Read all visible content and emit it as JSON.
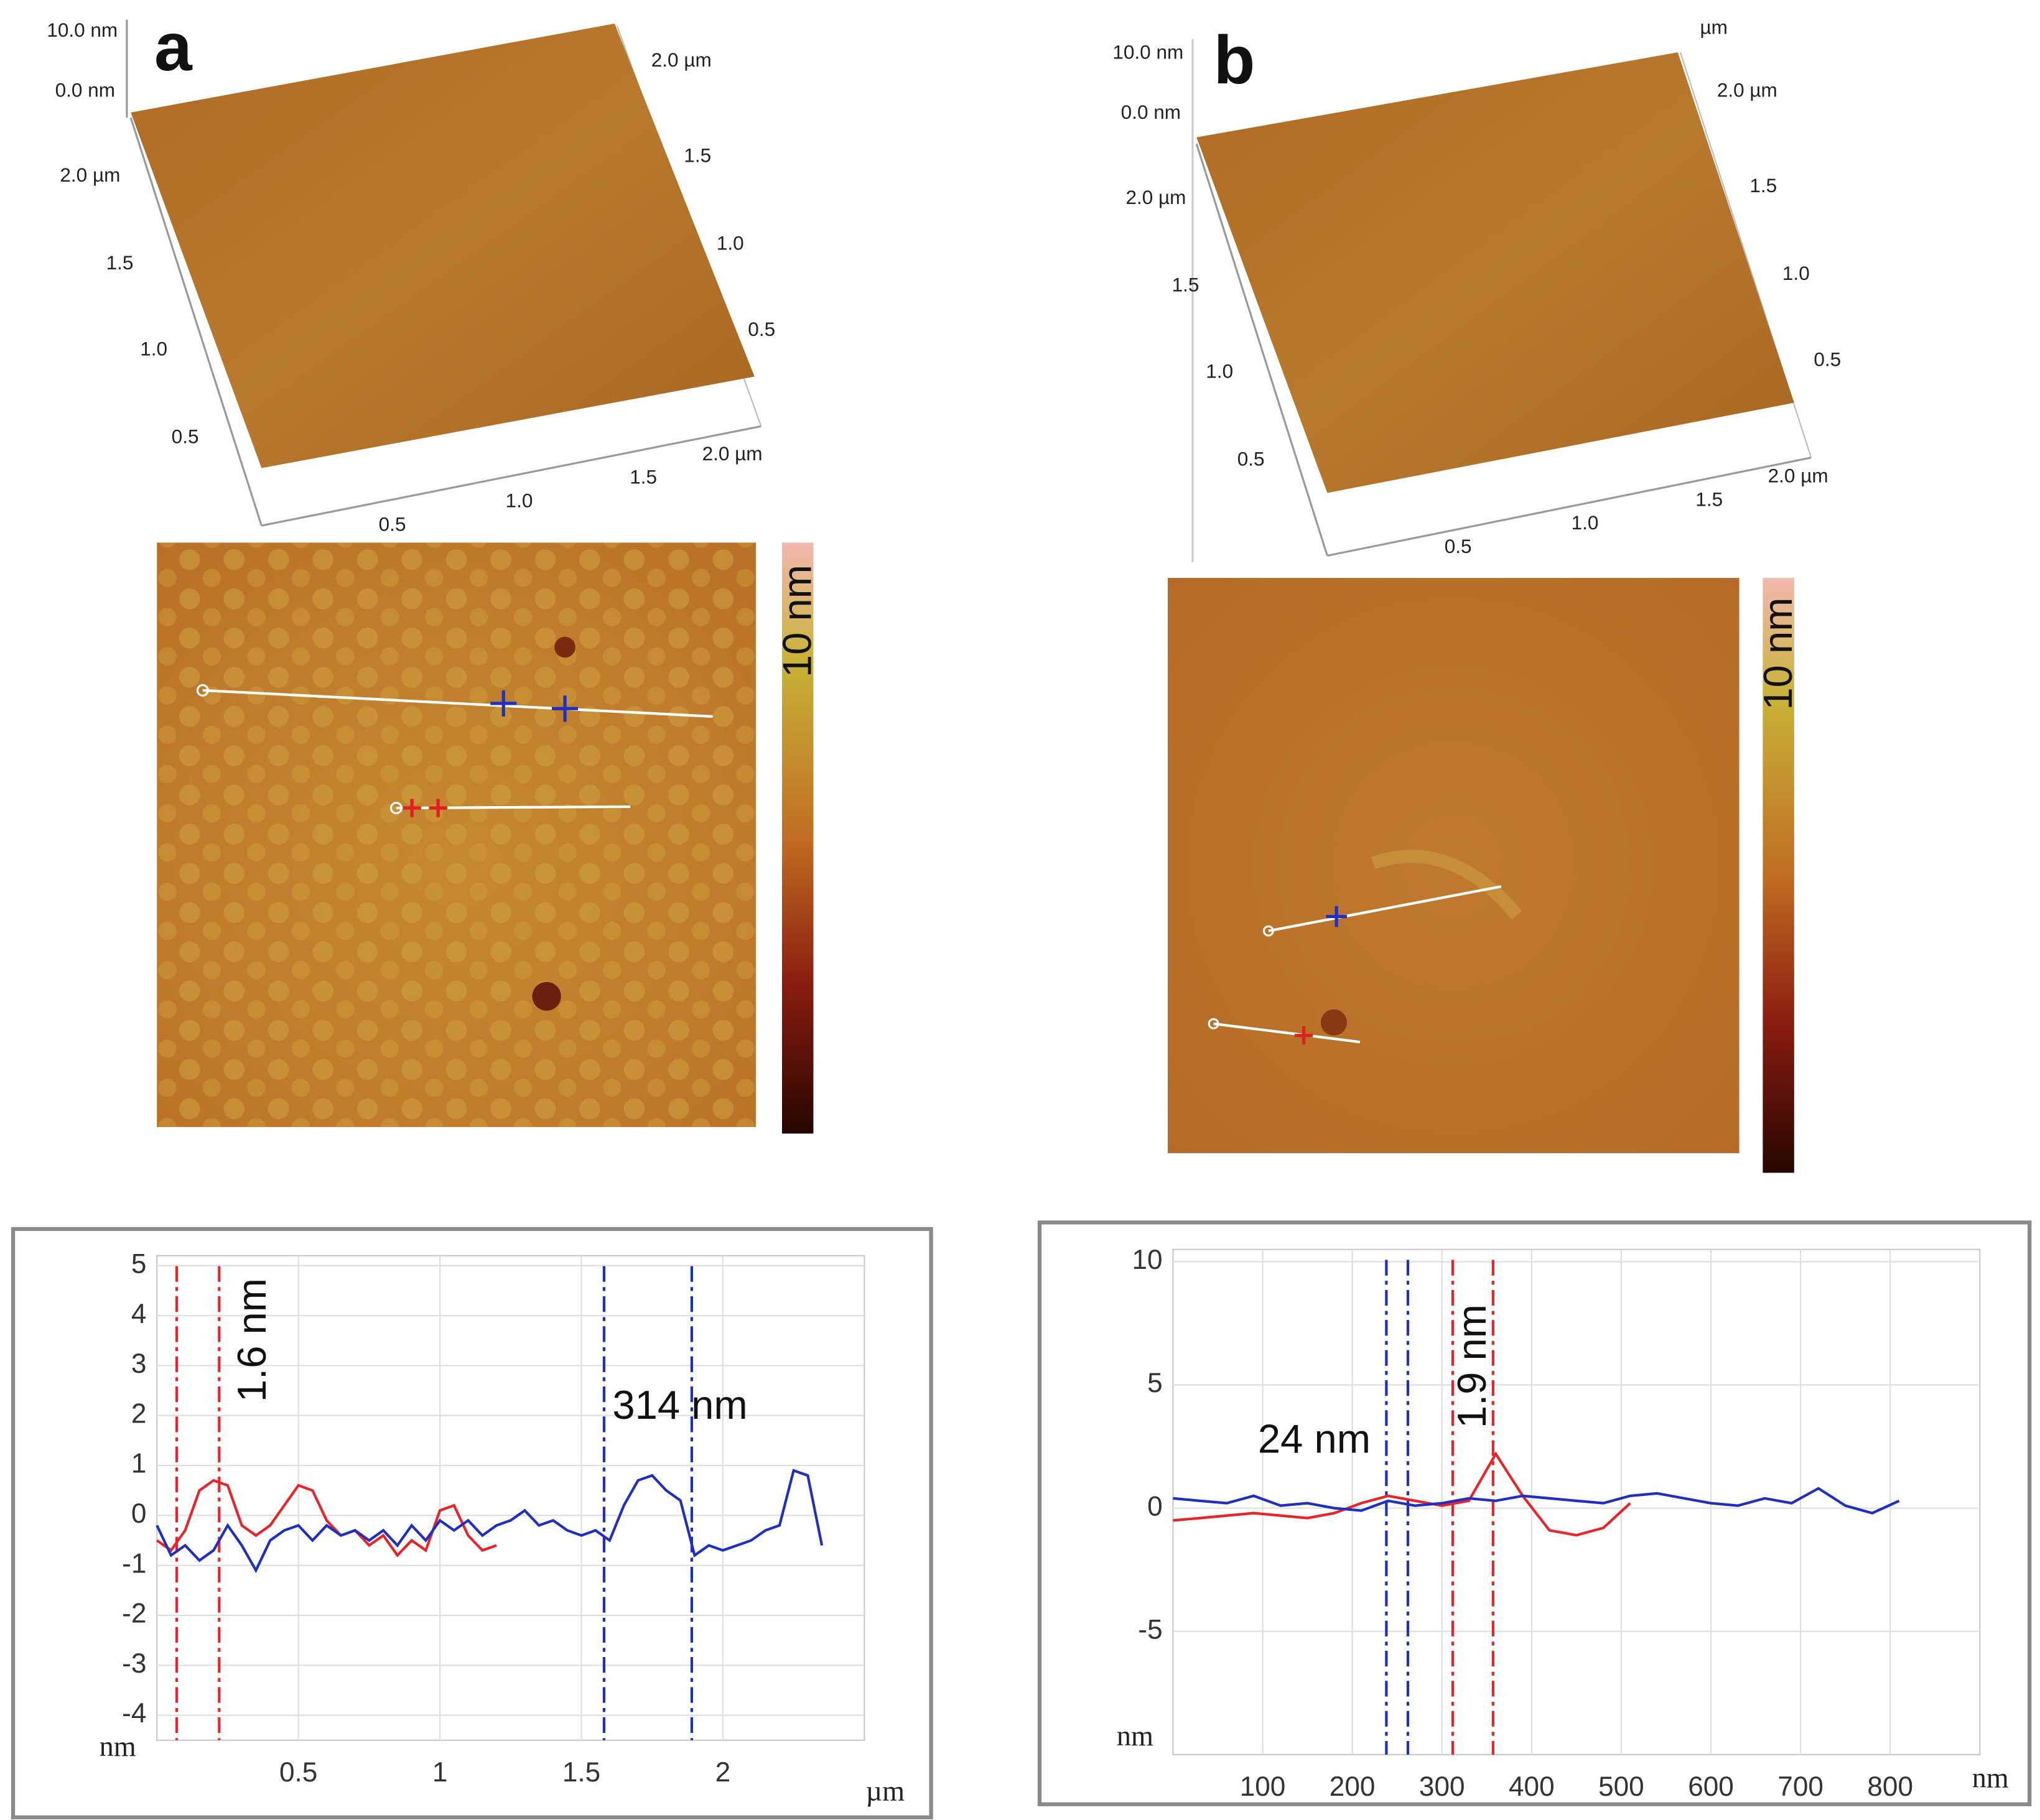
{
  "panels": [
    {
      "label": "a",
      "z_labels": [
        "10.0 nm",
        "0.0 nm"
      ],
      "left_axis": [
        "2.0 µm",
        "1.5",
        "1.0",
        "0.5"
      ],
      "right_axis": [
        "2.0 µm",
        "1.5",
        "1.0",
        "0.5"
      ],
      "bottom_axis": [
        "0.5",
        "1.0",
        "1.5",
        "2.0 µm"
      ],
      "colorbar_label": "10 nm"
    },
    {
      "label": "b",
      "unit_label": "µm",
      "z_labels": [
        "10.0 nm",
        "0.0 nm"
      ],
      "left_axis": [
        "2.0 µm",
        "1.5",
        "1.0",
        "0.5"
      ],
      "right_axis": [
        "2.0 µm",
        "1.5",
        "1.0",
        "0.5"
      ],
      "bottom_axis": [
        "0.5",
        "1.0",
        "1.5",
        "2.0 µm"
      ],
      "colorbar_label": "10 nm"
    }
  ],
  "chart_data": [
    {
      "type": "line",
      "x_label": "µm",
      "y_label": "nm",
      "x": [
        0,
        0.05,
        0.1,
        0.15,
        0.2,
        0.25,
        0.3,
        0.35,
        0.4,
        0.45,
        0.5,
        0.55,
        0.6,
        0.65,
        0.7,
        0.75,
        0.8,
        0.85,
        0.9,
        0.95,
        1.0,
        1.05,
        1.1,
        1.15,
        1.2,
        1.25,
        1.3,
        1.35,
        1.4,
        1.45,
        1.5,
        1.55,
        1.6,
        1.65,
        1.7,
        1.75,
        1.8,
        1.85,
        1.9,
        1.95,
        2.0,
        2.05,
        2.1,
        2.15,
        2.2,
        2.25,
        2.3,
        2.35
      ],
      "series": [
        {
          "color": "#e8232a",
          "values": [
            -0.5,
            -0.7,
            -0.3,
            0.5,
            0.7,
            0.6,
            -0.2,
            -0.4,
            -0.2,
            0.2,
            0.6,
            0.5,
            -0.1,
            -0.4,
            -0.3,
            -0.6,
            -0.4,
            -0.8,
            -0.5,
            -0.7,
            0.1,
            0.2,
            -0.4,
            -0.7,
            -0.6,
            null,
            null,
            null,
            null,
            null,
            null,
            null,
            null,
            null,
            null,
            null,
            null,
            null,
            null,
            null,
            null,
            null,
            null,
            null,
            null,
            null,
            null,
            null
          ]
        },
        {
          "color": "#1f2fbf",
          "values": [
            -0.2,
            -0.8,
            -0.6,
            -0.9,
            -0.7,
            -0.2,
            -0.6,
            -1.1,
            -0.5,
            -0.3,
            -0.2,
            -0.5,
            -0.2,
            -0.4,
            -0.3,
            -0.5,
            -0.3,
            -0.6,
            -0.2,
            -0.5,
            -0.1,
            -0.3,
            -0.1,
            -0.4,
            -0.2,
            -0.1,
            0.1,
            -0.2,
            -0.1,
            -0.3,
            -0.4,
            -0.3,
            -0.5,
            0.2,
            0.7,
            0.8,
            0.5,
            0.3,
            -0.8,
            -0.6,
            -0.7,
            -0.6,
            -0.5,
            -0.3,
            -0.2,
            0.9,
            0.8,
            -0.6
          ]
        }
      ],
      "reference_lines": [
        {
          "x": 0.07,
          "color": "#e8232a"
        },
        {
          "x": 0.22,
          "color": "#e8232a"
        },
        {
          "x": 1.58,
          "color": "#1f2fbf"
        },
        {
          "x": 1.89,
          "color": "#1f2fbf"
        }
      ],
      "annotations": [
        "1.6 nm",
        "314 nm"
      ],
      "xlim": [
        0,
        2.5
      ],
      "ylim": [
        -4.5,
        5.2
      ],
      "xticks": [
        0.5,
        1,
        1.5,
        2
      ],
      "yticks": [
        -4,
        -3,
        -2,
        -1,
        0,
        1,
        2,
        3,
        4,
        5
      ],
      "grid": true
    },
    {
      "type": "line",
      "x_label": "nm",
      "y_label": "nm",
      "x": [
        0,
        30,
        60,
        90,
        120,
        150,
        180,
        210,
        240,
        270,
        300,
        330,
        360,
        390,
        420,
        450,
        480,
        510,
        540,
        570,
        600,
        630,
        660,
        690,
        720,
        750,
        780,
        810
      ],
      "series": [
        {
          "color": "#e8232a",
          "values": [
            -0.5,
            -0.4,
            -0.3,
            -0.2,
            -0.3,
            -0.4,
            -0.2,
            0.2,
            0.5,
            0.3,
            0.1,
            0.3,
            2.2,
            0.5,
            -0.9,
            -1.1,
            -0.8,
            0.2,
            null,
            null,
            null,
            null,
            null,
            null,
            null,
            null,
            null,
            null
          ]
        },
        {
          "color": "#1f2fbf",
          "values": [
            0.4,
            0.3,
            0.2,
            0.5,
            0.1,
            0.2,
            0,
            -0.1,
            0.3,
            0.1,
            0.2,
            0.4,
            0.3,
            0.5,
            0.4,
            0.3,
            0.2,
            0.5,
            0.6,
            0.4,
            0.2,
            0.1,
            0.4,
            0.2,
            0.8,
            0.1,
            -0.2,
            0.3
          ]
        }
      ],
      "reference_lines": [
        {
          "x": 238,
          "color": "#1f2fbf"
        },
        {
          "x": 262,
          "color": "#1f2fbf"
        },
        {
          "x": 312,
          "color": "#e8232a"
        },
        {
          "x": 357,
          "color": "#e8232a"
        }
      ],
      "annotations": [
        "24 nm",
        "1.9 nm"
      ],
      "xlim": [
        0,
        900
      ],
      "ylim": [
        -10,
        10.5
      ],
      "xticks": [
        100,
        200,
        300,
        400,
        500,
        600,
        700,
        800
      ],
      "yticks": [
        -5,
        0,
        5,
        10
      ],
      "grid": true
    }
  ]
}
